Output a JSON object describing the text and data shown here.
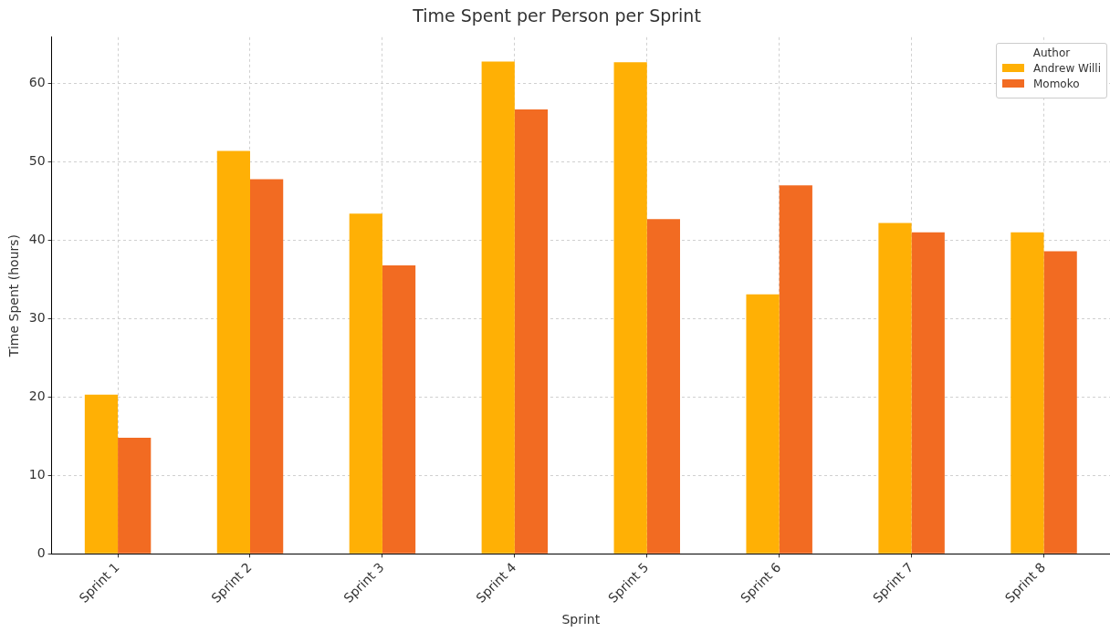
{
  "chart_data": {
    "type": "bar",
    "title": "Time Spent per Person per Sprint",
    "xlabel": "Sprint",
    "ylabel": "Time Spent (hours)",
    "legend_title": "Author",
    "categories": [
      "Sprint 1",
      "Sprint 2",
      "Sprint 3",
      "Sprint 4",
      "Sprint 5",
      "Sprint 6",
      "Sprint 7",
      "Sprint 8"
    ],
    "series": [
      {
        "name": "Andrew Willi",
        "color": "#ffb005",
        "values": [
          20.3,
          51.4,
          43.4,
          62.8,
          62.7,
          33.1,
          42.2,
          41.0
        ]
      },
      {
        "name": "Momoko",
        "color": "#f26b22",
        "values": [
          14.8,
          47.8,
          36.8,
          56.7,
          42.7,
          47.0,
          41.0,
          38.6
        ]
      }
    ],
    "ylim": [
      0,
      65.9
    ],
    "yticks": [
      0,
      10,
      20,
      30,
      40,
      50,
      60
    ],
    "grid": true,
    "legend": "top right"
  }
}
